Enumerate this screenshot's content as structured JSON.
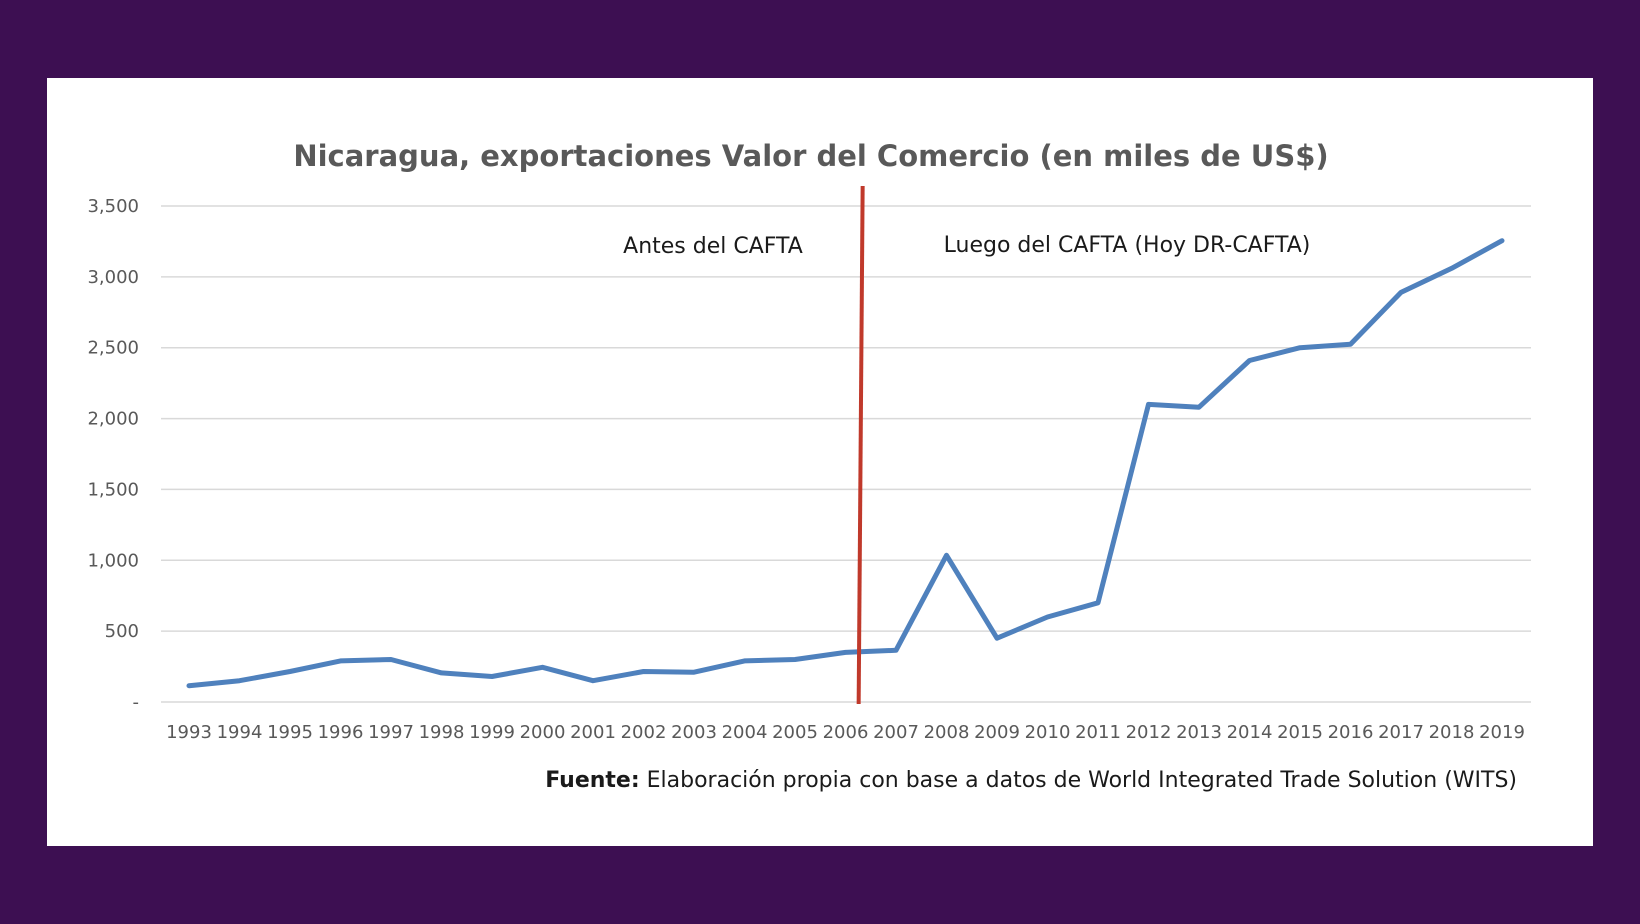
{
  "chart_data": {
    "type": "line",
    "title": "Nicaragua, exportaciones Valor del Comercio (en miles de US$)",
    "xlabel": "",
    "ylabel": "",
    "x": [
      "1993",
      "1994",
      "1995",
      "1996",
      "1997",
      "1998",
      "1999",
      "2000",
      "2001",
      "2002",
      "2003",
      "2004",
      "2005",
      "2006",
      "2007",
      "2008",
      "2009",
      "2010",
      "2011",
      "2012",
      "2013",
      "2014",
      "2015",
      "2016",
      "2017",
      "2018",
      "2019"
    ],
    "series": [
      {
        "name": "Exportaciones",
        "color": "#4f81bd",
        "values": [
          115,
          150,
          215,
          290,
          300,
          205,
          180,
          245,
          150,
          215,
          210,
          290,
          300,
          350,
          365,
          1035,
          450,
          600,
          700,
          2100,
          2080,
          2410,
          2500,
          2525,
          2890,
          3060,
          3255
        ]
      }
    ],
    "ylim": [
      0,
      3500
    ],
    "yticks": [
      0,
      500,
      1000,
      1500,
      2000,
      2500,
      3000,
      3500
    ],
    "ytick_labels": [
      "-",
      "500",
      "1,000",
      "1,500",
      "2,000",
      "2,500",
      "3,000",
      "3,500"
    ],
    "grid": true,
    "divider": {
      "between": [
        "2006",
        "2007"
      ],
      "position": 13.3,
      "color": "#c0392b"
    },
    "annotations": {
      "before": "Antes del CAFTA",
      "after": "Luego del CAFTA (Hoy DR-CAFTA)"
    }
  },
  "source": {
    "label": "Fuente:",
    "text": " Elaboración propia con base a datos de World Integrated Trade Solution (WITS)"
  }
}
